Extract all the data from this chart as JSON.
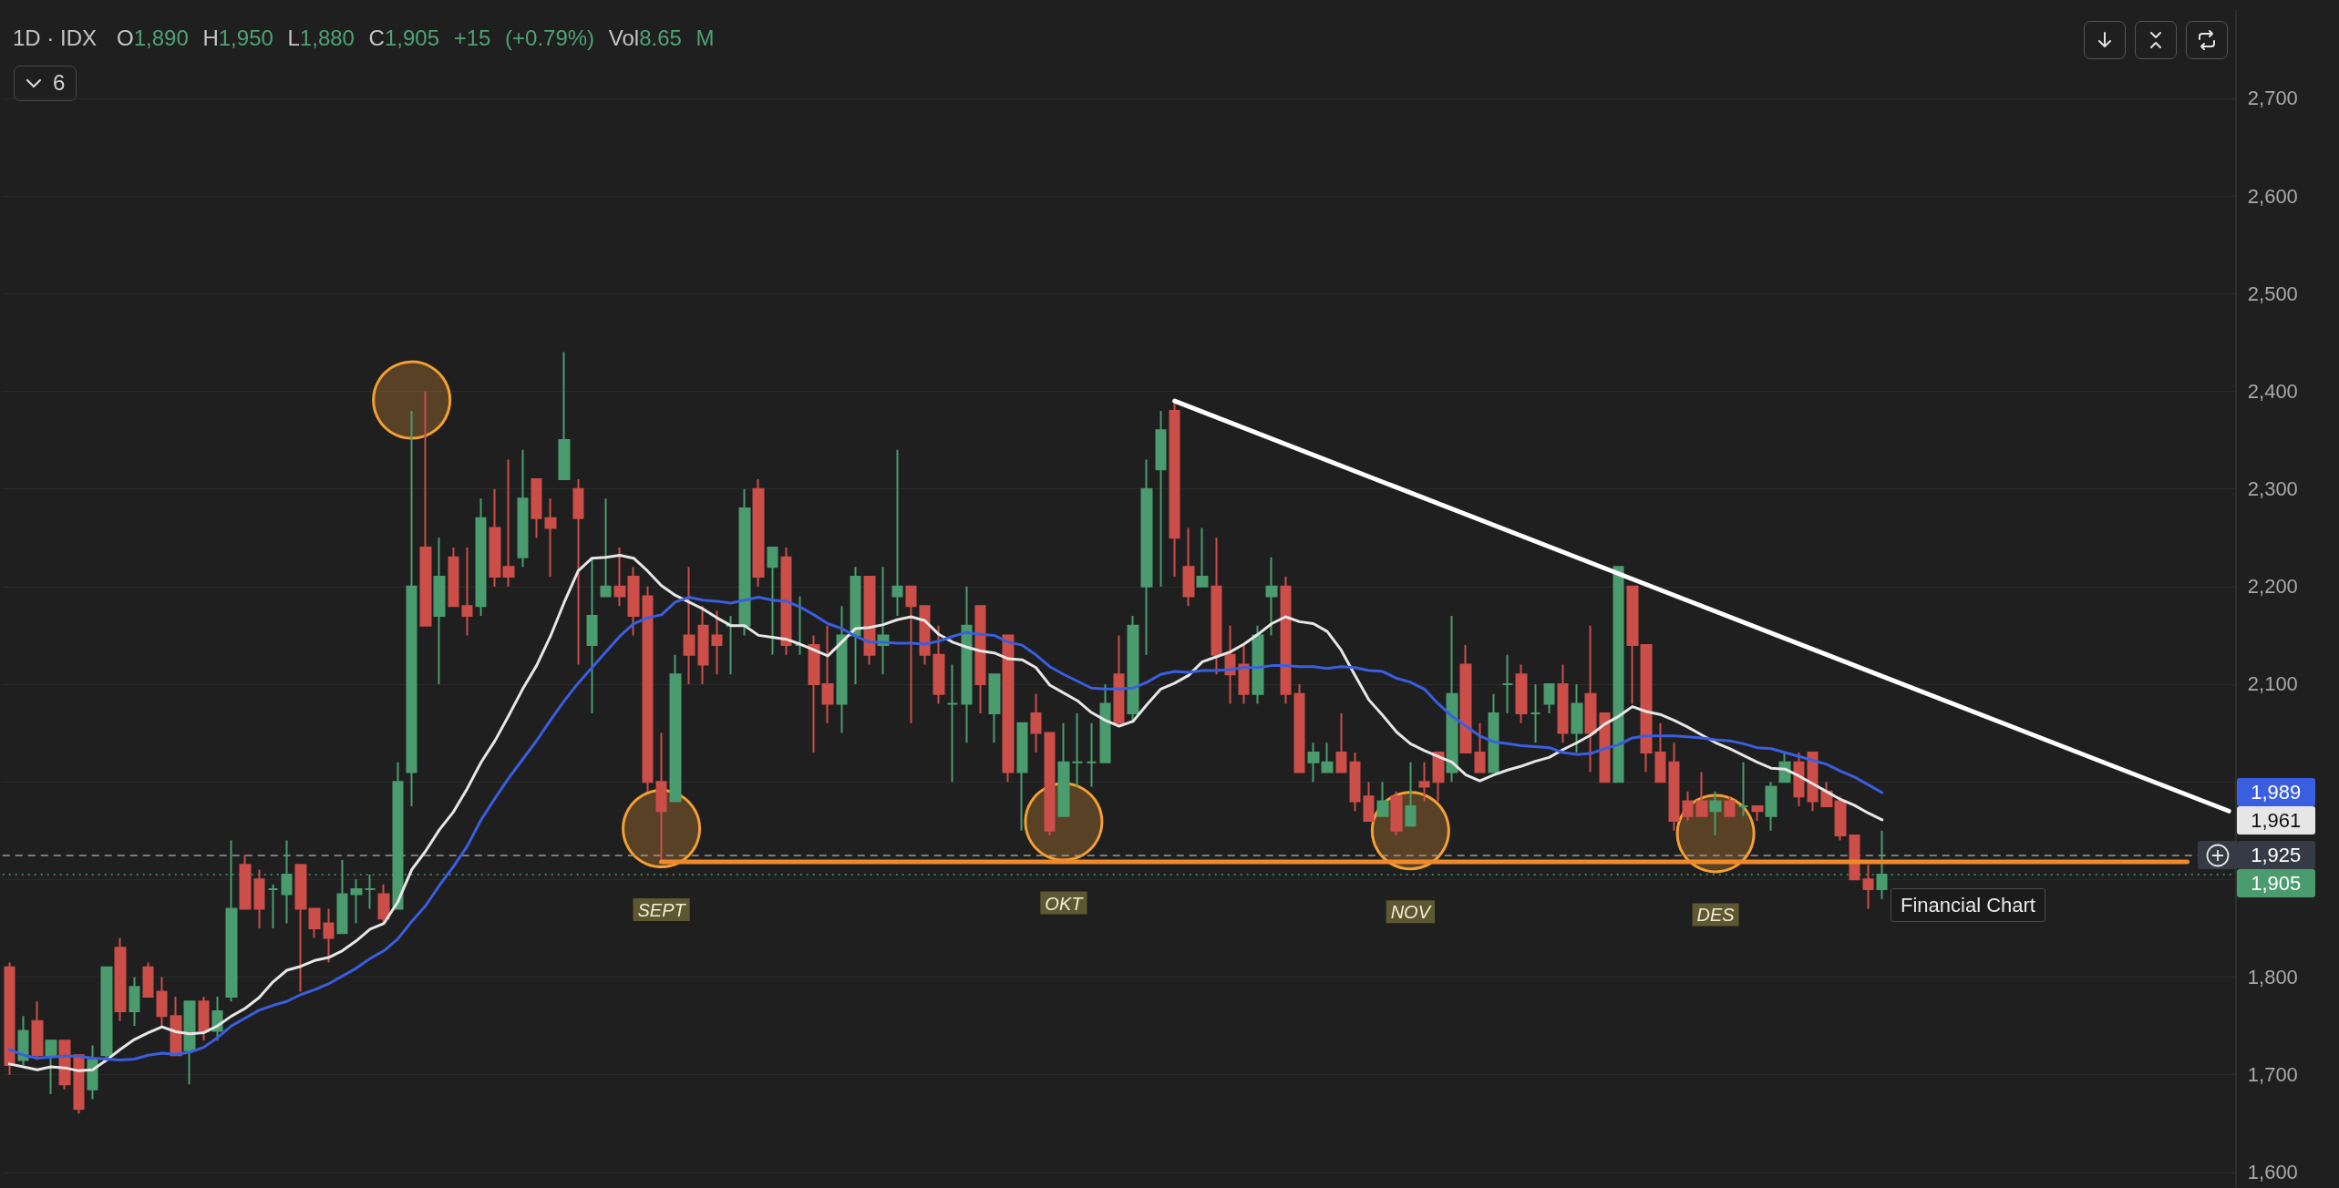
{
  "chart_data": {
    "type": "candlestick",
    "title": "1D · IDX",
    "subtitle": "O1,890 H1,950 L1,880 C1,905 +15 (+0.79%) Vol8.65 M",
    "categories": [
      null,
      null,
      null,
      null,
      null,
      null,
      null,
      null,
      null,
      null,
      null,
      null,
      null,
      null,
      null,
      null,
      null,
      null,
      null,
      null,
      null,
      null,
      null,
      null,
      null,
      null,
      null,
      null,
      null,
      null,
      null,
      null,
      null,
      null,
      null,
      null,
      null,
      null,
      null,
      null,
      null,
      null,
      null,
      null,
      null,
      null,
      null,
      null,
      null,
      null,
      null,
      null,
      null,
      null,
      null,
      null,
      null,
      null,
      null,
      null,
      null,
      null,
      null,
      null,
      null,
      null,
      null,
      null,
      null,
      null,
      null,
      null,
      null,
      null,
      null,
      null,
      null,
      null,
      null,
      null,
      null,
      null,
      null,
      null,
      null,
      null,
      null,
      null,
      null,
      null,
      null,
      null,
      null,
      null,
      null,
      null,
      null,
      null,
      null,
      null,
      null,
      null,
      null,
      null,
      null,
      null,
      null,
      null,
      null,
      null,
      null,
      null,
      null,
      null,
      null,
      null,
      null,
      null,
      null,
      null,
      null,
      null,
      null,
      null,
      null,
      null,
      null,
      null,
      null,
      null,
      null,
      null,
      null,
      null,
      null,
      null,
      null,
      null,
      null,
      null,
      null,
      null,
      null,
      null,
      null,
      null,
      null,
      null,
      null,
      null,
      null,
      null,
      null,
      null,
      null,
      null,
      null,
      null,
      null,
      null,
      null
    ],
    "ohlc": [
      [
        1810,
        1815,
        1700,
        1710
      ],
      [
        1715,
        1760,
        1710,
        1745
      ],
      [
        1755,
        1775,
        1715,
        1720
      ],
      [
        1720,
        1735,
        1680,
        1735
      ],
      [
        1735,
        1735,
        1685,
        1690
      ],
      [
        1720,
        1720,
        1660,
        1665
      ],
      [
        1685,
        1730,
        1675,
        1715
      ],
      [
        1720,
        1810,
        1715,
        1810
      ],
      [
        1830,
        1840,
        1755,
        1765
      ],
      [
        1765,
        1800,
        1750,
        1790
      ],
      [
        1810,
        1815,
        1780,
        1780
      ],
      [
        1785,
        1800,
        1750,
        1760
      ],
      [
        1760,
        1780,
        1720,
        1720
      ],
      [
        1725,
        1775,
        1690,
        1775
      ],
      [
        1775,
        1780,
        1735,
        1745
      ],
      [
        1745,
        1780,
        1735,
        1765
      ],
      [
        1780,
        1940,
        1775,
        1870
      ],
      [
        1915,
        1925,
        1870,
        1870
      ],
      [
        1900,
        1910,
        1850,
        1870
      ],
      [
        1890,
        1895,
        1850,
        1890
      ],
      [
        1885,
        1940,
        1855,
        1905
      ],
      [
        1915,
        1915,
        1785,
        1870
      ],
      [
        1870,
        1870,
        1840,
        1850
      ],
      [
        1855,
        1870,
        1815,
        1840
      ],
      [
        1845,
        1920,
        1845,
        1885
      ],
      [
        1885,
        1900,
        1855,
        1890
      ],
      [
        1890,
        1905,
        1870,
        1890
      ],
      [
        1885,
        1895,
        1855,
        1860
      ],
      [
        1870,
        2020,
        1870,
        2000
      ],
      [
        2010,
        2380,
        1975,
        2200
      ],
      [
        2240,
        2400,
        2160,
        2160
      ],
      [
        2170,
        2250,
        2100,
        2210
      ],
      [
        2230,
        2240,
        2180,
        2180
      ],
      [
        2180,
        2240,
        2150,
        2170
      ],
      [
        2180,
        2290,
        2170,
        2270
      ],
      [
        2260,
        2300,
        2200,
        2210
      ],
      [
        2220,
        2330,
        2200,
        2210
      ],
      [
        2230,
        2340,
        2220,
        2290
      ],
      [
        2310,
        2310,
        2250,
        2270
      ],
      [
        2270,
        2290,
        2210,
        2260
      ],
      [
        2310,
        2440,
        2310,
        2350
      ],
      [
        2300,
        2310,
        2120,
        2270
      ],
      [
        2140,
        2230,
        2070,
        2170
      ],
      [
        2190,
        2290,
        2190,
        2200
      ],
      [
        2200,
        2240,
        2180,
        2190
      ],
      [
        2210,
        2220,
        2150,
        2170
      ],
      [
        2190,
        2200,
        1990,
        2000
      ],
      [
        2000,
        2050,
        1920,
        1970
      ],
      [
        1980,
        2130,
        1980,
        2110
      ],
      [
        2150,
        2220,
        2100,
        2130
      ],
      [
        2160,
        2180,
        2100,
        2120
      ],
      [
        2150,
        2175,
        2110,
        2140
      ],
      [
        2160,
        2170,
        2110,
        2160
      ],
      [
        2160,
        2300,
        2150,
        2280
      ],
      [
        2300,
        2310,
        2200,
        2210
      ],
      [
        2220,
        2240,
        2130,
        2240
      ],
      [
        2230,
        2240,
        2130,
        2140
      ],
      [
        2140,
        2190,
        2130,
        2140
      ],
      [
        2140,
        2150,
        2030,
        2100
      ],
      [
        2100,
        2160,
        2060,
        2080
      ],
      [
        2080,
        2180,
        2050,
        2150
      ],
      [
        2150,
        2220,
        2100,
        2210
      ],
      [
        2210,
        2210,
        2120,
        2130
      ],
      [
        2140,
        2220,
        2110,
        2150
      ],
      [
        2190,
        2340,
        2170,
        2200
      ],
      [
        2200,
        2200,
        2060,
        2180
      ],
      [
        2180,
        2180,
        2120,
        2130
      ],
      [
        2130,
        2160,
        2080,
        2090
      ],
      [
        2080,
        2120,
        2000,
        2080
      ],
      [
        2080,
        2200,
        2040,
        2160
      ],
      [
        2180,
        2180,
        2070,
        2100
      ],
      [
        2070,
        2110,
        2040,
        2110
      ],
      [
        2150,
        2150,
        2000,
        2010
      ],
      [
        2010,
        2060,
        1950,
        2060
      ],
      [
        2070,
        2090,
        2030,
        2050
      ],
      [
        2050,
        2050,
        1945,
        1950
      ],
      [
        1965,
        2060,
        1965,
        2020
      ],
      [
        2020,
        2070,
        1995,
        2020
      ],
      [
        2020,
        2060,
        1995,
        2020
      ],
      [
        2020,
        2100,
        2020,
        2080
      ],
      [
        2110,
        2150,
        2060,
        2060
      ],
      [
        2070,
        2170,
        2060,
        2160
      ],
      [
        2200,
        2330,
        2130,
        2300
      ],
      [
        2320,
        2380,
        2200,
        2360
      ],
      [
        2380,
        2390,
        2210,
        2250
      ],
      [
        2220,
        2260,
        2180,
        2190
      ],
      [
        2200,
        2260,
        2200,
        2210
      ],
      [
        2200,
        2250,
        2110,
        2130
      ],
      [
        2130,
        2160,
        2080,
        2110
      ],
      [
        2120,
        2140,
        2080,
        2090
      ],
      [
        2090,
        2160,
        2080,
        2150
      ],
      [
        2190,
        2230,
        2150,
        2200
      ],
      [
        2200,
        2210,
        2080,
        2090
      ],
      [
        2090,
        2100,
        2010,
        2010
      ],
      [
        2020,
        2040,
        2000,
        2030
      ],
      [
        2010,
        2040,
        2010,
        2020
      ],
      [
        2030,
        2070,
        2010,
        2010
      ],
      [
        2020,
        2030,
        1970,
        1980
      ],
      [
        1985,
        2000,
        1960,
        1960
      ],
      [
        1965,
        2000,
        1965,
        1980
      ],
      [
        1985,
        1990,
        1945,
        1950
      ],
      [
        1955,
        2020,
        1955,
        1975
      ],
      [
        2000,
        2020,
        1980,
        1995
      ],
      [
        2030,
        2030,
        1980,
        2000
      ],
      [
        2010,
        2170,
        2000,
        2090
      ],
      [
        2120,
        2140,
        2030,
        2030
      ],
      [
        2030,
        2060,
        2010,
        2010
      ],
      [
        2010,
        2090,
        2010,
        2070
      ],
      [
        2100,
        2130,
        2070,
        2100
      ],
      [
        2110,
        2120,
        2060,
        2070
      ],
      [
        2070,
        2100,
        2040,
        2070
      ],
      [
        2080,
        2100,
        2070,
        2100
      ],
      [
        2100,
        2120,
        2040,
        2050
      ],
      [
        2050,
        2100,
        2030,
        2080
      ],
      [
        2090,
        2160,
        2010,
        2050
      ],
      [
        2070,
        2070,
        2000,
        2000
      ],
      [
        2000,
        2220,
        2000,
        2220
      ],
      [
        2200,
        2200,
        2080,
        2140
      ],
      [
        2140,
        2140,
        2010,
        2030
      ],
      [
        2030,
        2060,
        2000,
        2000
      ],
      [
        2020,
        2040,
        1950,
        1960
      ],
      [
        1980,
        1990,
        1960,
        1965
      ],
      [
        1980,
        2010,
        1965,
        1965
      ],
      [
        1970,
        1990,
        1945,
        1980
      ],
      [
        1980,
        1985,
        1965,
        1965
      ],
      [
        1975,
        2020,
        1965,
        1975
      ],
      [
        1975,
        1975,
        1960,
        1970
      ],
      [
        1965,
        2000,
        1950,
        1995
      ],
      [
        2000,
        2030,
        2000,
        2020
      ],
      [
        2020,
        2030,
        1975,
        1985
      ],
      [
        2030,
        2030,
        1970,
        1980
      ],
      [
        1990,
        2000,
        1975,
        1975
      ],
      [
        1980,
        1985,
        1940,
        1945
      ],
      [
        1945,
        1945,
        1900,
        1900
      ],
      [
        1900,
        1915,
        1870,
        1890
      ],
      [
        1890,
        1950,
        1880,
        1905
      ],
      null,
      null,
      null,
      null,
      null,
      null,
      null,
      null,
      null,
      null,
      null,
      null,
      null,
      null,
      null,
      null,
      null,
      null,
      null,
      null,
      null,
      null,
      null,
      null,
      null
    ],
    "colors": [
      "#cc4e48",
      "#4a9c6e",
      "#cc4e48",
      "#4a9c6e",
      "#cc4e48",
      "#cc4e48",
      "#4a9c6e",
      "#4a9c6e",
      "#cc4e48",
      "#4a9c6e",
      "#cc4e48",
      "#cc4e48",
      "#cc4e48",
      "#4a9c6e",
      "#cc4e48",
      "#4a9c6e",
      "#4a9c6e",
      "#cc4e48",
      "#cc4e48",
      "#4a9c6e",
      "#4a9c6e",
      "#cc4e48",
      "#cc4e48",
      "#cc4e48",
      "#4a9c6e",
      "#4a9c6e",
      "#4a9c6e",
      "#cc4e48",
      "#4a9c6e",
      "#4a9c6e",
      "#cc4e48",
      "#4a9c6e",
      "#cc4e48",
      "#cc4e48",
      "#4a9c6e",
      "#cc4e48",
      "#cc4e48",
      "#4a9c6e",
      "#cc4e48",
      "#cc4e48",
      "#4a9c6e",
      "#cc4e48",
      "#4a9c6e",
      "#4a9c6e",
      "#cc4e48",
      "#cc4e48",
      "#cc4e48",
      "#cc4e48",
      "#4a9c6e",
      "#cc4e48",
      "#cc4e48",
      "#cc4e48",
      "#4a9c6e",
      "#4a9c6e",
      "#cc4e48",
      "#4a9c6e",
      "#cc4e48",
      "#4a9c6e",
      "#cc4e48",
      "#cc4e48",
      "#4a9c6e",
      "#4a9c6e",
      "#cc4e48",
      "#4a9c6e",
      "#4a9c6e",
      "#cc4e48",
      "#cc4e48",
      "#cc4e48",
      "#4a9c6e",
      "#4a9c6e",
      "#cc4e48",
      "#4a9c6e",
      "#cc4e48",
      "#4a9c6e",
      "#cc4e48",
      "#cc4e48",
      "#4a9c6e",
      "#4a9c6e",
      "#4a9c6e",
      "#4a9c6e",
      "#cc4e48",
      "#4a9c6e",
      "#4a9c6e",
      "#4a9c6e",
      "#cc4e48",
      "#cc4e48",
      "#4a9c6e",
      "#cc4e48",
      "#cc4e48",
      "#cc4e48",
      "#4a9c6e",
      "#4a9c6e",
      "#cc4e48",
      "#cc4e48",
      "#4a9c6e",
      "#4a9c6e",
      "#cc4e48",
      "#cc4e48",
      "#cc4e48",
      "#4a9c6e",
      "#cc4e48",
      "#4a9c6e",
      "#cc4e48",
      "#cc4e48",
      "#4a9c6e",
      "#cc4e48",
      "#cc4e48",
      "#4a9c6e",
      "#4a9c6e",
      "#cc4e48",
      "#4a9c6e",
      "#4a9c6e",
      "#cc4e48",
      "#4a9c6e",
      "#cc4e48",
      "#cc4e48",
      "#4a9c6e",
      "#cc4e48",
      "#cc4e48",
      "#cc4e48",
      "#cc4e48",
      "#cc4e48",
      "#cc4e48",
      "#4a9c6e",
      "#cc4e48",
      "#4a9c6e",
      "#cc4e48",
      "#4a9c6e",
      "#4a9c6e",
      "#cc4e48",
      "#cc4e48",
      "#cc4e48",
      "#cc4e48",
      "#cc4e48",
      "#cc4e48",
      "#4a9c6e",
      null,
      null,
      null,
      null,
      null,
      null,
      null,
      null,
      null,
      null,
      null,
      null,
      null,
      null,
      null,
      null,
      null,
      null,
      null,
      null,
      null,
      null,
      null,
      null,
      null
    ],
    "series": [
      {
        "type": "line",
        "color": "#e6e6e6",
        "values": [
          1711,
          1708,
          1705,
          1708,
          1707,
          1704,
          1705,
          1715,
          1726,
          1736,
          1743,
          1749,
          1744,
          1742,
          1743,
          1750,
          1760,
          1768,
          1779,
          1795,
          1807,
          1811,
          1817,
          1820,
          1827,
          1837,
          1849,
          1855,
          1877,
          1910,
          1929,
          1951,
          1969,
          1993,
          2020,
          2042,
          2068,
          2095,
          2119,
          2149,
          2184,
          2216,
          2229,
          2230,
          2232,
          2229,
          2216,
          2201,
          2191,
          2184,
          2177,
          2168,
          2160,
          2160,
          2150,
          2148,
          2146,
          2141,
          2135,
          2129,
          2143,
          2157,
          2158,
          2161,
          2166,
          2169,
          2165,
          2151,
          2143,
          2138,
          2134,
          2132,
          2126,
          2125,
          2117,
          2099,
          2091,
          2083,
          2071,
          2063,
          2057,
          2062,
          2079,
          2095,
          2101,
          2109,
          2123,
          2128,
          2133,
          2141,
          2151,
          2162,
          2169,
          2164,
          2162,
          2154,
          2135,
          2109,
          2084,
          2068,
          2051,
          2039,
          2032,
          2026,
          2020,
          2007,
          2001,
          2007,
          2012,
          2016,
          2021,
          2025,
          2033,
          2040,
          2048,
          2059,
          2067,
          2077,
          2072,
          2069,
          2063,
          2056,
          2048,
          2040,
          2034,
          2027,
          2020,
          2014,
          2013,
          2006,
          1998,
          1990,
          1982,
          1976,
          1968,
          1961,
          null,
          null,
          null,
          null,
          null,
          null,
          null,
          null,
          null,
          null,
          null,
          null,
          null,
          null,
          null,
          null,
          null,
          null,
          null,
          null,
          null,
          null,
          null,
          null,
          null
        ]
      },
      {
        "type": "line",
        "color": "#3a5ee0",
        "values": [
          1726,
          1720,
          1717,
          1718,
          1719,
          1719,
          1717,
          1716,
          1715,
          1716,
          1720,
          1722,
          1721,
          1723,
          1728,
          1738,
          1750,
          1758,
          1766,
          1771,
          1775,
          1782,
          1787,
          1793,
          1801,
          1809,
          1819,
          1827,
          1839,
          1857,
          1873,
          1894,
          1913,
          1934,
          1961,
          1983,
          2004,
          2023,
          2042,
          2063,
          2083,
          2101,
          2117,
          2133,
          2149,
          2162,
          2168,
          2171,
          2184,
          2189,
          2186,
          2185,
          2183,
          2186,
          2189,
          2186,
          2185,
          2179,
          2171,
          2162,
          2157,
          2149,
          2143,
          2143,
          2142,
          2142,
          2141,
          2144,
          2149,
          2153,
          2151,
          2150,
          2143,
          2140,
          2130,
          2118,
          2110,
          2103,
          2096,
          2095,
          2095,
          2096,
          2102,
          2110,
          2113,
          2112,
          2114,
          2114,
          2115,
          2117,
          2117,
          2119,
          2119,
          2118,
          2118,
          2116,
          2118,
          2117,
          2114,
          2113,
          2106,
          2102,
          2095,
          2080,
          2067,
          2057,
          2047,
          2041,
          2039,
          2037,
          2036,
          2035,
          2030,
          2028,
          2029,
          2034,
          2038,
          2045,
          2047,
          2047,
          2047,
          2046,
          2045,
          2043,
          2042,
          2039,
          2035,
          2034,
          2030,
          2026,
          2022,
          2018,
          2011,
          2005,
          1997,
          1989,
          null,
          null,
          null,
          null,
          null,
          null,
          null,
          null,
          null,
          null,
          null,
          null,
          null,
          null,
          null,
          null,
          null,
          null,
          null,
          null,
          null,
          null,
          null,
          null,
          null
        ]
      },
      {
        "type": "line",
        "color": "#ffffff",
        "values": [
          null,
          null,
          null,
          null,
          null,
          null,
          null,
          null,
          null,
          null,
          null,
          null,
          null,
          null,
          null,
          null,
          null,
          null,
          null,
          null,
          null,
          null,
          null,
          null,
          null,
          null,
          null,
          null,
          null,
          null,
          null,
          null,
          null,
          null,
          null,
          null,
          null,
          null,
          null,
          null,
          null,
          null,
          null,
          null,
          null,
          null,
          null,
          null,
          null,
          null,
          null,
          null,
          null,
          null,
          null,
          null,
          null,
          null,
          null,
          null,
          null,
          null,
          null,
          null,
          null,
          null,
          null,
          null,
          null,
          null,
          null,
          null,
          null,
          null,
          null,
          null,
          null,
          null,
          null,
          null,
          null,
          null,
          null,
          null,
          2390,
          null,
          null,
          null,
          null,
          null,
          null,
          null,
          null,
          null,
          null,
          null,
          null,
          null,
          null,
          null,
          null,
          null,
          null,
          null,
          null,
          null,
          null,
          null,
          null,
          null,
          null,
          null,
          null,
          null,
          null,
          null,
          null,
          null,
          null,
          null,
          null,
          null,
          null,
          null,
          null,
          null,
          null,
          null,
          null,
          null,
          null,
          null,
          null,
          null,
          null,
          null,
          null,
          null,
          null,
          null,
          null,
          null,
          null,
          null,
          null,
          null,
          null,
          null,
          null,
          null,
          null,
          null,
          null,
          null,
          null,
          null,
          null,
          null,
          null,
          null,
          1970
        ]
      },
      {
        "type": "line",
        "color": "#f0892a",
        "values": [
          null,
          null,
          null,
          null,
          null,
          null,
          null,
          null,
          null,
          null,
          null,
          null,
          null,
          null,
          null,
          null,
          null,
          null,
          null,
          null,
          null,
          null,
          null,
          null,
          null,
          null,
          null,
          null,
          null,
          null,
          null,
          null,
          null,
          null,
          null,
          null,
          null,
          null,
          null,
          null,
          null,
          null,
          null,
          null,
          null,
          null,
          null,
          1918,
          null,
          null,
          null,
          null,
          null,
          null,
          null,
          null,
          null,
          null,
          null,
          null,
          null,
          null,
          null,
          null,
          null,
          null,
          null,
          null,
          null,
          null,
          null,
          null,
          null,
          null,
          null,
          null,
          null,
          null,
          null,
          null,
          null,
          null,
          null,
          null,
          null,
          null,
          null,
          null,
          null,
          null,
          null,
          null,
          null,
          null,
          null,
          null,
          null,
          null,
          null,
          null,
          null,
          null,
          null,
          null,
          null,
          null,
          null,
          null,
          null,
          null,
          null,
          null,
          null,
          null,
          null,
          null,
          null,
          null,
          null,
          null,
          null,
          null,
          null,
          null,
          null,
          null,
          null,
          null,
          null,
          null,
          null,
          null,
          null,
          null,
          null,
          null,
          null,
          null,
          null,
          null,
          null,
          null,
          null,
          null,
          null,
          null,
          null,
          null,
          null,
          null,
          null,
          null,
          null,
          null,
          null,
          null,
          null,
          1918,
          null,
          null,
          null
        ]
      },
      {
        "type": "scatter",
        "color": "#f5a033",
        "marker": "circle",
        "values": [
          null,
          null,
          null,
          null,
          null,
          null,
          null,
          null,
          null,
          null,
          null,
          null,
          null,
          null,
          null,
          null,
          null,
          null,
          null,
          null,
          null,
          null,
          null,
          null,
          null,
          null,
          null,
          null,
          null,
          2391,
          null,
          null,
          null,
          null,
          null,
          null,
          null,
          null,
          null,
          null,
          null,
          null,
          null,
          null,
          null,
          null,
          null,
          1952,
          null,
          null,
          null,
          null,
          null,
          null,
          null,
          null,
          null,
          null,
          null,
          null,
          null,
          null,
          null,
          null,
          null,
          null,
          null,
          null,
          null,
          null,
          null,
          null,
          null,
          null,
          null,
          null,
          1959,
          null,
          null,
          null,
          null,
          null,
          null,
          null,
          null,
          null,
          null,
          null,
          null,
          null,
          null,
          null,
          null,
          null,
          null,
          null,
          null,
          null,
          null,
          null,
          null,
          1950,
          null,
          null,
          null,
          null,
          null,
          null,
          null,
          null,
          null,
          null,
          null,
          null,
          null,
          null,
          null,
          null,
          null,
          null,
          null,
          null,
          null,
          1947,
          null,
          null,
          null,
          null,
          null,
          null,
          null,
          null,
          null,
          null,
          null,
          null,
          null,
          null,
          null,
          null,
          null,
          null,
          null,
          null,
          null,
          null,
          null,
          null,
          null,
          null,
          null,
          null,
          null,
          null,
          null,
          null,
          null,
          null,
          null,
          null,
          null
        ],
        "value_labels": [
          null,
          null,
          null,
          null,
          null,
          null,
          null,
          null,
          null,
          null,
          null,
          null,
          null,
          null,
          null,
          null,
          null,
          null,
          null,
          null,
          null,
          null,
          null,
          null,
          null,
          null,
          null,
          null,
          null,
          null,
          null,
          null,
          null,
          null,
          null,
          null,
          null,
          null,
          null,
          null,
          null,
          null,
          null,
          null,
          null,
          null,
          null,
          "SEPT",
          null,
          null,
          null,
          null,
          null,
          null,
          null,
          null,
          null,
          null,
          null,
          null,
          null,
          null,
          null,
          null,
          null,
          null,
          null,
          null,
          null,
          null,
          null,
          null,
          null,
          null,
          null,
          null,
          "OKT",
          null,
          null,
          null,
          null,
          null,
          null,
          null,
          null,
          null,
          null,
          null,
          null,
          null,
          null,
          null,
          null,
          null,
          null,
          null,
          null,
          null,
          null,
          null,
          null,
          "NOV",
          null,
          null,
          null,
          null,
          null,
          null,
          null,
          null,
          null,
          null,
          null,
          null,
          null,
          null,
          null,
          null,
          null,
          null,
          null,
          null,
          null,
          "DES",
          null,
          null,
          null,
          null,
          null,
          null,
          null,
          null,
          null,
          null,
          null,
          null,
          null,
          null,
          null,
          null,
          null,
          null,
          null,
          null,
          null,
          null,
          null,
          null,
          null,
          null,
          null,
          null,
          null,
          null,
          null,
          null,
          null,
          null,
          null,
          null,
          null
        ]
      }
    ],
    "ylim": [
      1585,
      2790
    ],
    "yticks": [
      {
        "value": 1600,
        "label": "1,600"
      },
      {
        "value": 1700,
        "label": "1,700"
      },
      {
        "value": 1800,
        "label": "1,800"
      },
      {
        "value": 1900,
        "label": null
      },
      {
        "value": 2000,
        "label": null
      },
      {
        "value": 2100,
        "label": "2,100"
      },
      {
        "value": 2200,
        "label": "2,200"
      },
      {
        "value": 2300,
        "label": "2,300"
      },
      {
        "value": 2400,
        "label": "2,400"
      },
      {
        "value": 2500,
        "label": "2,500"
      },
      {
        "value": 2600,
        "label": "2,600"
      },
      {
        "value": 2700,
        "label": "2,700"
      }
    ],
    "grid": "y",
    "tick_labels": "y",
    "ref_lines": [
      {
        "axis": "y",
        "value": 1925,
        "label": "1,925",
        "color": "#9a9a9a",
        "line_style": "dashed"
      },
      {
        "axis": "y",
        "value": 1905,
        "label": "1,905",
        "color": "#4a9c6e",
        "line_style": "dotted"
      }
    ],
    "annotations": [
      "1,989",
      "1,961",
      "6",
      "Financial Chart"
    ]
  }
}
